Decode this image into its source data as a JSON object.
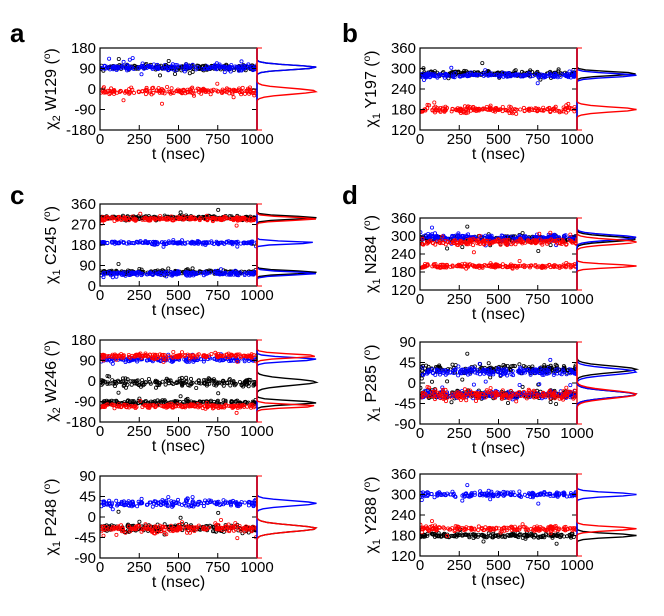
{
  "figure": {
    "panel_labels": [
      "a",
      "b",
      "c",
      "d"
    ],
    "colors": {
      "black": "#000000",
      "red": "#ff0000",
      "blue": "#0000ff",
      "axis": "#000000",
      "hist_axis": "#ff0000"
    }
  },
  "chart_data": [
    {
      "panel": "a",
      "type": "scatter",
      "ylabel_sym": "χ",
      "ylabel_sub": "2",
      "ylabel_res": " W129 (",
      "ylabel_deg": "o",
      "ylabel_end": ")",
      "xlabel": "t (nsec)",
      "xlim": [
        0,
        1000
      ],
      "ylim": [
        -180,
        180
      ],
      "xticks": [
        "0",
        "250",
        "500",
        "750",
        "1000"
      ],
      "yticks": [
        "-180",
        "-90",
        "0",
        "90",
        "180"
      ],
      "series": [
        {
          "name": "black",
          "color": "#000000",
          "bands": [
            {
              "center": 95,
              "spread": 14
            }
          ]
        },
        {
          "name": "blue",
          "color": "#0000ff",
          "bands": [
            {
              "center": 95,
              "spread": 14
            }
          ]
        },
        {
          "name": "red",
          "color": "#ff0000",
          "bands": [
            {
              "center": -10,
              "spread": 18
            }
          ]
        }
      ]
    },
    {
      "panel": "b",
      "type": "scatter",
      "ylabel_sym": "χ",
      "ylabel_sub": "1",
      "ylabel_res": " Y197 (",
      "ylabel_deg": "o",
      "ylabel_end": ")",
      "xlabel": "t (nsec)",
      "xlim": [
        0,
        1000
      ],
      "ylim": [
        120,
        360
      ],
      "xticks": [
        "0",
        "250",
        "500",
        "750",
        "1000"
      ],
      "yticks": [
        "120",
        "180",
        "240",
        "300",
        "360"
      ],
      "series": [
        {
          "name": "black",
          "color": "#000000",
          "bands": [
            {
              "center": 285,
              "spread": 8
            }
          ]
        },
        {
          "name": "blue",
          "color": "#0000ff",
          "bands": [
            {
              "center": 280,
              "spread": 8
            }
          ]
        },
        {
          "name": "red",
          "color": "#ff0000",
          "bands": [
            {
              "center": 180,
              "spread": 10
            }
          ]
        }
      ]
    },
    {
      "panel": "c1",
      "type": "scatter",
      "ylabel_sym": "χ",
      "ylabel_sub": "1",
      "ylabel_res": " C245 (",
      "ylabel_deg": "o",
      "ylabel_end": ")",
      "xlabel": "t (nsec)",
      "xlim": [
        0,
        1000
      ],
      "ylim": [
        0,
        360
      ],
      "xticks": [
        "0",
        "250",
        "500",
        "750",
        "1000"
      ],
      "yticks": [
        "0",
        "90",
        "180",
        "270",
        "360"
      ],
      "series": [
        {
          "name": "black",
          "color": "#000000",
          "bands": [
            {
              "center": 300,
              "spread": 10
            },
            {
              "center": 60,
              "spread": 10
            }
          ]
        },
        {
          "name": "blue",
          "color": "#0000ff",
          "bands": [
            {
              "center": 55,
              "spread": 10
            },
            {
              "center": 190,
              "spread": 8
            }
          ]
        },
        {
          "name": "red",
          "color": "#ff0000",
          "bands": [
            {
              "center": 295,
              "spread": 10
            }
          ]
        }
      ]
    },
    {
      "panel": "d1",
      "type": "scatter",
      "ylabel_sym": "χ",
      "ylabel_sub": "1",
      "ylabel_res": " N284 (",
      "ylabel_deg": "o",
      "ylabel_end": ")",
      "xlabel": "t (nsec)",
      "xlim": [
        0,
        1000
      ],
      "ylim": [
        120,
        360
      ],
      "xticks": [
        "0",
        "250",
        "500",
        "750",
        "1000"
      ],
      "yticks": [
        "120",
        "180",
        "240",
        "300",
        "360"
      ],
      "series": [
        {
          "name": "black",
          "color": "#000000",
          "bands": [
            {
              "center": 290,
              "spread": 12
            }
          ]
        },
        {
          "name": "blue",
          "color": "#0000ff",
          "bands": [
            {
              "center": 295,
              "spread": 12
            }
          ]
        },
        {
          "name": "red",
          "color": "#ff0000",
          "bands": [
            {
              "center": 280,
              "spread": 12
            },
            {
              "center": 200,
              "spread": 8
            }
          ]
        }
      ]
    },
    {
      "panel": "c2",
      "type": "scatter",
      "ylabel_sym": "χ",
      "ylabel_sub": "2",
      "ylabel_res": " W246 (",
      "ylabel_deg": "o",
      "ylabel_end": ")",
      "xlabel": "t (nsec)",
      "xlim": [
        0,
        1000
      ],
      "ylim": [
        -180,
        180
      ],
      "xticks": [
        "0",
        "250",
        "500",
        "750",
        "1000"
      ],
      "yticks": [
        "-180",
        "-90",
        "0",
        "90",
        "180"
      ],
      "series": [
        {
          "name": "black",
          "color": "#000000",
          "bands": [
            {
              "center": -5,
              "spread": 20
            },
            {
              "center": -95,
              "spread": 12
            }
          ]
        },
        {
          "name": "blue",
          "color": "#0000ff",
          "bands": [
            {
              "center": 95,
              "spread": 12
            }
          ]
        },
        {
          "name": "red",
          "color": "#ff0000",
          "bands": [
            {
              "center": 110,
              "spread": 12
            },
            {
              "center": -110,
              "spread": 10
            }
          ]
        }
      ]
    },
    {
      "panel": "d2",
      "type": "scatter",
      "ylabel_sym": "χ",
      "ylabel_sub": "1",
      "ylabel_res": " P285 (",
      "ylabel_deg": "o",
      "ylabel_end": ")",
      "xlabel": "t (nsec)",
      "xlim": [
        0,
        1000
      ],
      "ylim": [
        -90,
        90
      ],
      "xticks": [
        "0",
        "250",
        "500",
        "750",
        "1000"
      ],
      "yticks": [
        "-90",
        "-45",
        "0",
        "45",
        "90"
      ],
      "series": [
        {
          "name": "black",
          "color": "#000000",
          "bands": [
            {
              "center": 30,
              "spread": 10
            },
            {
              "center": -25,
              "spread": 10
            }
          ]
        },
        {
          "name": "blue",
          "color": "#0000ff",
          "bands": [
            {
              "center": 25,
              "spread": 10
            },
            {
              "center": -25,
              "spread": 10
            }
          ]
        },
        {
          "name": "red",
          "color": "#ff0000",
          "bands": [
            {
              "center": -25,
              "spread": 12
            }
          ]
        }
      ]
    },
    {
      "panel": "c3",
      "type": "scatter",
      "ylabel_sym": "χ",
      "ylabel_sub": "1",
      "ylabel_res": " P248 (",
      "ylabel_deg": "o",
      "ylabel_end": ")",
      "xlabel": "t (nsec)",
      "xlim": [
        0,
        1000
      ],
      "ylim": [
        -90,
        90
      ],
      "xticks": [
        "0",
        "250",
        "500",
        "750",
        "1000"
      ],
      "yticks": [
        "-90",
        "-45",
        "0",
        "45",
        "90"
      ],
      "series": [
        {
          "name": "black",
          "color": "#000000",
          "bands": [
            {
              "center": -25,
              "spread": 10
            }
          ]
        },
        {
          "name": "blue",
          "color": "#0000ff",
          "bands": [
            {
              "center": 30,
              "spread": 8
            }
          ]
        },
        {
          "name": "red",
          "color": "#ff0000",
          "bands": [
            {
              "center": -25,
              "spread": 10
            }
          ]
        }
      ]
    },
    {
      "panel": "d3",
      "type": "scatter",
      "ylabel_sym": "χ",
      "ylabel_sub": "1",
      "ylabel_res": " Y288 (",
      "ylabel_deg": "o",
      "ylabel_end": ")",
      "xlabel": "t (nsec)",
      "xlim": [
        0,
        1000
      ],
      "ylim": [
        120,
        360
      ],
      "xticks": [
        "0",
        "250",
        "500",
        "750",
        "1000"
      ],
      "yticks": [
        "120",
        "180",
        "240",
        "300",
        "360"
      ],
      "series": [
        {
          "name": "black",
          "color": "#000000",
          "bands": [
            {
              "center": 180,
              "spread": 8
            }
          ]
        },
        {
          "name": "blue",
          "color": "#0000ff",
          "bands": [
            {
              "center": 300,
              "spread": 8
            }
          ]
        },
        {
          "name": "red",
          "color": "#ff0000",
          "bands": [
            {
              "center": 200,
              "spread": 8
            }
          ]
        }
      ]
    }
  ]
}
